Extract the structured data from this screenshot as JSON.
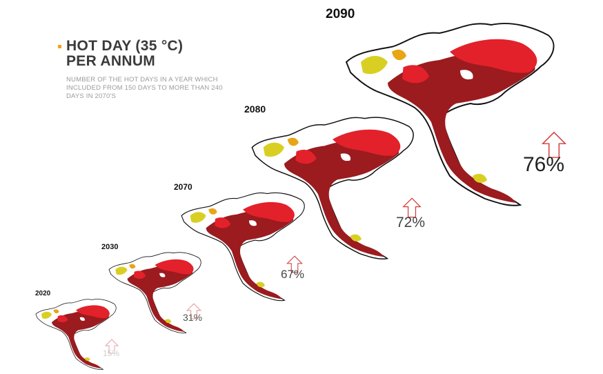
{
  "title": {
    "line1": "HOT DAY (35 °C)",
    "line2": "PER ANNUM",
    "description": "NUMBER OF THE HOT DAYS IN A YEAR WHICH INCLUDED FROM 150 DAYS TO MORE THAN 240 DAYS IN 2070'S"
  },
  "colors": {
    "accent": "#f4a21c",
    "dark_red": "#9b1b1f",
    "red": "#e3212b",
    "yellow": "#d9cf23",
    "orange": "#e8a516",
    "arrow_stroke": "#d23b3b"
  },
  "maps": [
    {
      "year": "2020",
      "percent": "15%"
    },
    {
      "year": "2030",
      "percent": "31%"
    },
    {
      "year": "2070",
      "percent": "67%"
    },
    {
      "year": "2080",
      "percent": "72%"
    },
    {
      "year": "2090",
      "percent": "76%"
    }
  ]
}
